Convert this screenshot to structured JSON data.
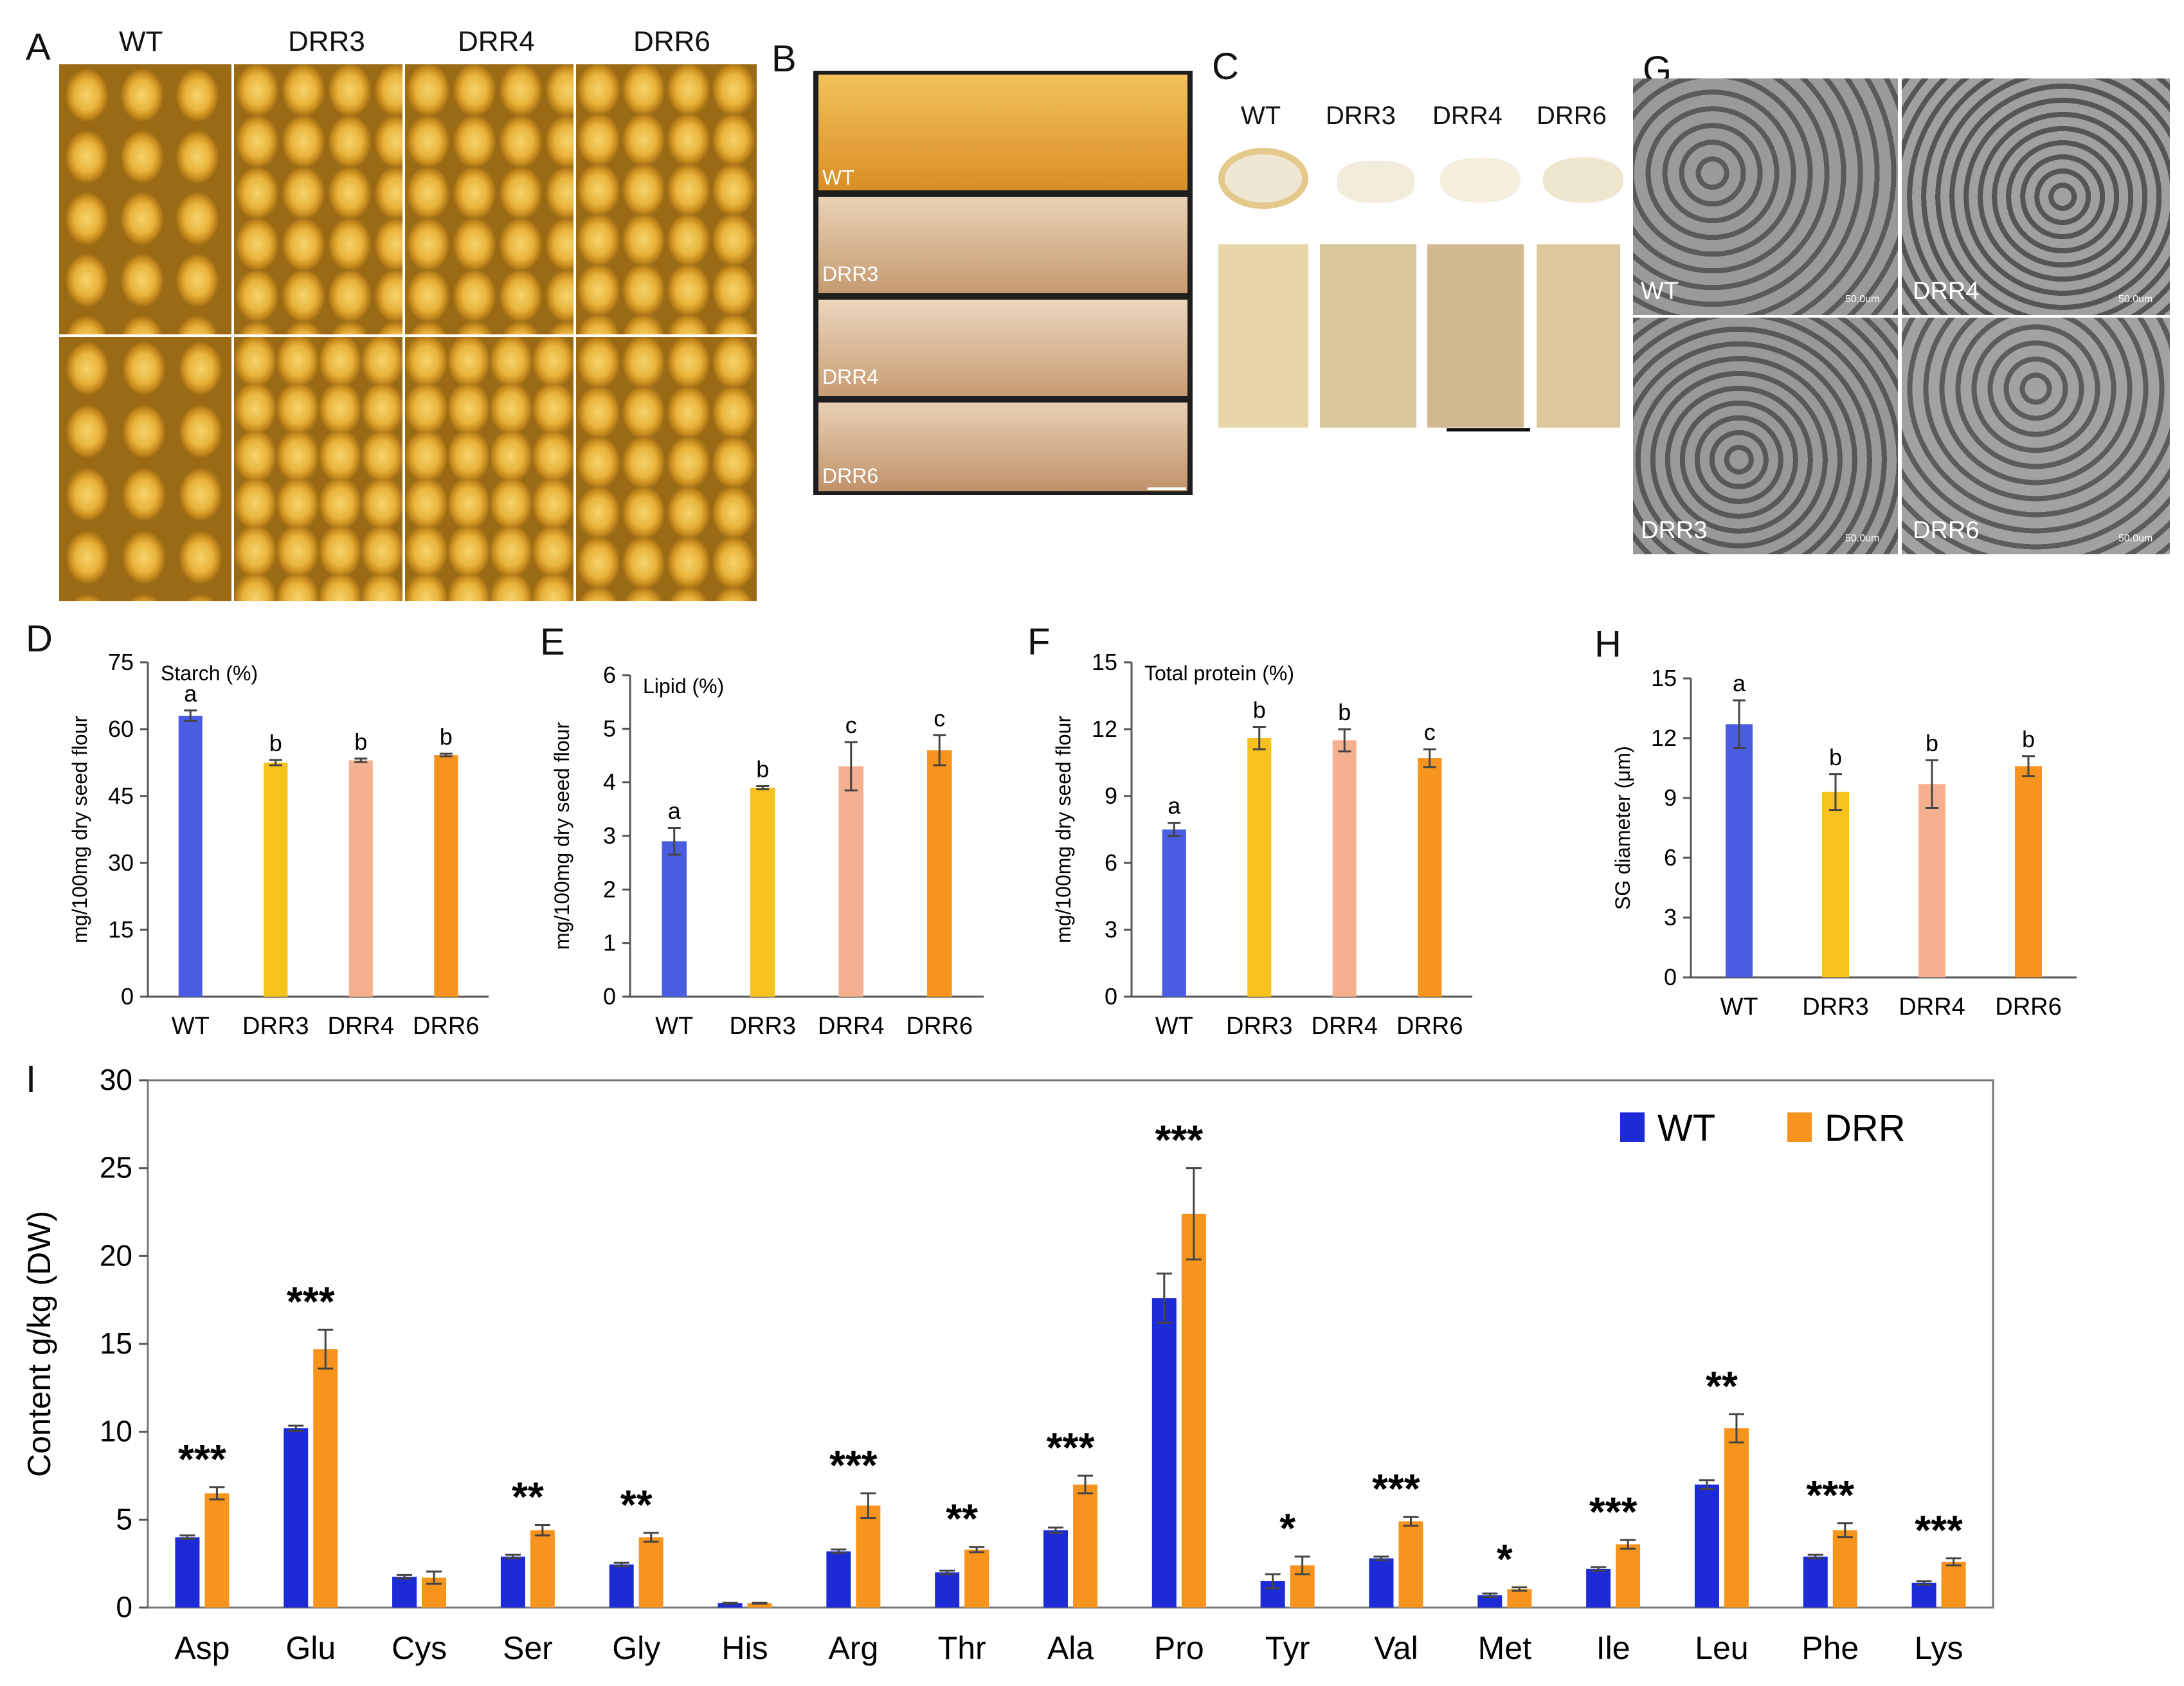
{
  "panels": {
    "A": {
      "letter": "A",
      "headers": [
        "WT",
        "DRR3",
        "DRR4",
        "DRR6"
      ]
    },
    "B": {
      "letter": "B",
      "labels": [
        "WT",
        "DRR3",
        "DRR4",
        "DRR6"
      ]
    },
    "C": {
      "letter": "C",
      "headers": [
        "WT",
        "DRR3",
        "DRR4",
        "DRR6"
      ]
    },
    "G": {
      "letter": "G",
      "labels": [
        "WT",
        "DRR4",
        "DRR3",
        "DRR6"
      ],
      "scale": "50.0um"
    },
    "D": {
      "letter": "D"
    },
    "E": {
      "letter": "E"
    },
    "F": {
      "letter": "F"
    },
    "H": {
      "letter": "H"
    },
    "I": {
      "letter": "I"
    }
  },
  "colors": {
    "WT": "#4a5de0",
    "DRR3": "#f7c21c",
    "DRR4": "#f4b08f",
    "DRR6": "#f7941d",
    "I_WT": "#1c2bd6",
    "I_DRR": "#f7941d"
  },
  "chart_data": [
    {
      "id": "D",
      "type": "bar",
      "title": "Starch (%)",
      "ylabel": "mg/100mg dry seed flour",
      "categories": [
        "WT",
        "DRR3",
        "DRR4",
        "DRR6"
      ],
      "values": [
        63,
        52.5,
        53,
        54.2
      ],
      "errors": [
        1.2,
        0.6,
        0.4,
        0.3
      ],
      "letters": [
        "a",
        "b",
        "b",
        "b"
      ],
      "ylim": [
        0,
        75
      ],
      "ticks": [
        0,
        15,
        30,
        45,
        60,
        75
      ]
    },
    {
      "id": "E",
      "type": "bar",
      "title": "Lipid (%)",
      "ylabel": "mg/100mg dry seed flour",
      "categories": [
        "WT",
        "DRR3",
        "DRR4",
        "DRR6"
      ],
      "values": [
        2.9,
        3.9,
        4.3,
        4.6
      ],
      "errors": [
        0.25,
        0.03,
        0.45,
        0.28
      ],
      "letters": [
        "a",
        "b",
        "c",
        "c"
      ],
      "ylim": [
        0,
        6
      ],
      "ticks": [
        0,
        1,
        2,
        3,
        4,
        5,
        6
      ]
    },
    {
      "id": "F",
      "type": "bar",
      "title": "Total protein (%)",
      "ylabel": "mg/100mg dry seed flour",
      "categories": [
        "WT",
        "DRR3",
        "DRR4",
        "DRR6"
      ],
      "values": [
        7.5,
        11.6,
        11.5,
        10.7
      ],
      "errors": [
        0.3,
        0.5,
        0.5,
        0.4
      ],
      "letters": [
        "a",
        "b",
        "b",
        "c"
      ],
      "ylim": [
        0,
        15
      ],
      "ticks": [
        0,
        3,
        6,
        9,
        12,
        15
      ]
    },
    {
      "id": "H",
      "type": "bar",
      "title": "",
      "ylabel": "SG diameter (μm)",
      "categories": [
        "WT",
        "DRR3",
        "DRR4",
        "DRR6"
      ],
      "values": [
        12.7,
        9.3,
        9.7,
        10.6
      ],
      "errors": [
        1.2,
        0.9,
        1.2,
        0.5
      ],
      "letters": [
        "a",
        "b",
        "b",
        "b"
      ],
      "ylim": [
        0,
        15
      ],
      "ticks": [
        0,
        3,
        6,
        9,
        12,
        15
      ]
    },
    {
      "id": "I",
      "type": "bar",
      "title": "",
      "ylabel": "Content g/kg (DW)",
      "categories": [
        "Asp",
        "Glu",
        "Cys",
        "Ser",
        "Gly",
        "His",
        "Arg",
        "Thr",
        "Ala",
        "Pro",
        "Tyr",
        "Val",
        "Met",
        "Ile",
        "Leu",
        "Phe",
        "Lys"
      ],
      "series": [
        {
          "name": "WT",
          "values": [
            4.0,
            10.2,
            1.75,
            2.9,
            2.45,
            0.25,
            3.2,
            2.0,
            4.4,
            17.6,
            1.5,
            2.8,
            0.7,
            2.2,
            7.0,
            2.9,
            1.4
          ],
          "errors": [
            0.1,
            0.15,
            0.1,
            0.1,
            0.1,
            0.03,
            0.1,
            0.1,
            0.15,
            1.4,
            0.4,
            0.1,
            0.1,
            0.1,
            0.25,
            0.1,
            0.1
          ]
        },
        {
          "name": "DRR",
          "values": [
            6.5,
            14.7,
            1.7,
            4.4,
            4.0,
            0.25,
            5.8,
            3.3,
            7.0,
            22.4,
            2.4,
            4.9,
            1.05,
            3.6,
            10.2,
            4.4,
            2.6
          ],
          "errors": [
            0.35,
            1.1,
            0.35,
            0.3,
            0.25,
            0.03,
            0.7,
            0.15,
            0.5,
            2.6,
            0.5,
            0.25,
            0.1,
            0.25,
            0.8,
            0.4,
            0.2
          ]
        }
      ],
      "significance": [
        "***",
        "***",
        "",
        "**",
        "**",
        "",
        "***",
        "**",
        "***",
        "***",
        "*",
        "***",
        "*",
        "***",
        "**",
        "***",
        "***"
      ],
      "ylim": [
        0,
        30
      ],
      "ticks": [
        0,
        5,
        10,
        15,
        20,
        25,
        30
      ],
      "legend": "top-right"
    }
  ]
}
